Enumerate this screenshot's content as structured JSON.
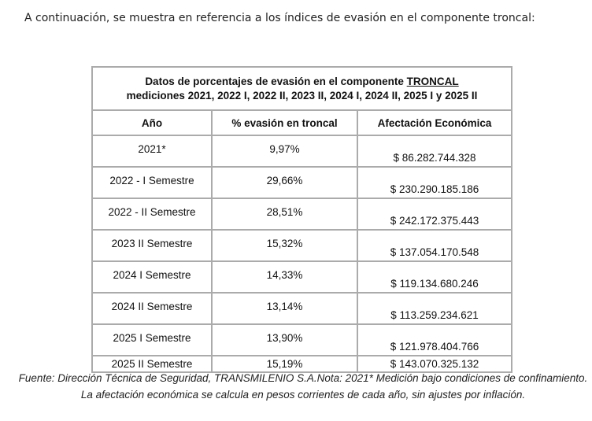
{
  "intro": "A continuación, se muestra en referencia a los índices de evasión en el componente troncal:",
  "table": {
    "title_line1": "Datos de porcentajes de evasión en el componente ",
    "title_underlined": "TRONCAL",
    "title_line2": "mediciones 2021, 2022 I, 2022 II,   2023 II, 2024 I,  2024 II, 2025 I y 2025 II",
    "headers": [
      "Año",
      "% evasión en troncal",
      "Afectación Económica"
    ],
    "rows": [
      [
        "2021*",
        "9,97%",
        "$ 86.282.744.328"
      ],
      [
        "2022 - I Semestre",
        "29,66%",
        "$ 230.290.185.186"
      ],
      [
        "2022 - II Semestre",
        "28,51%",
        "$ 242.172.375.443"
      ],
      [
        "2023 II Semestre",
        "15,32%",
        "$ 137.054.170.548"
      ],
      [
        "2024 I Semestre",
        "14,33%",
        "$ 119.134.680.246"
      ],
      [
        "2024 II Semestre",
        "13,14%",
        "$ 113.259.234.621"
      ],
      [
        "2025 I Semestre",
        "13,90%",
        "$ 121.978.404.766"
      ],
      [
        "2025 II Semestre",
        "15,19%",
        "$ 143.070.325.132"
      ]
    ]
  },
  "note": "Fuente: Dirección Técnica de Seguridad, TRANSMILENIO S.A.Nota: 2021* Medición bajo condiciones de confinamiento. La afectación económica se calcula en pesos corrientes de cada año, sin ajustes por inflación."
}
